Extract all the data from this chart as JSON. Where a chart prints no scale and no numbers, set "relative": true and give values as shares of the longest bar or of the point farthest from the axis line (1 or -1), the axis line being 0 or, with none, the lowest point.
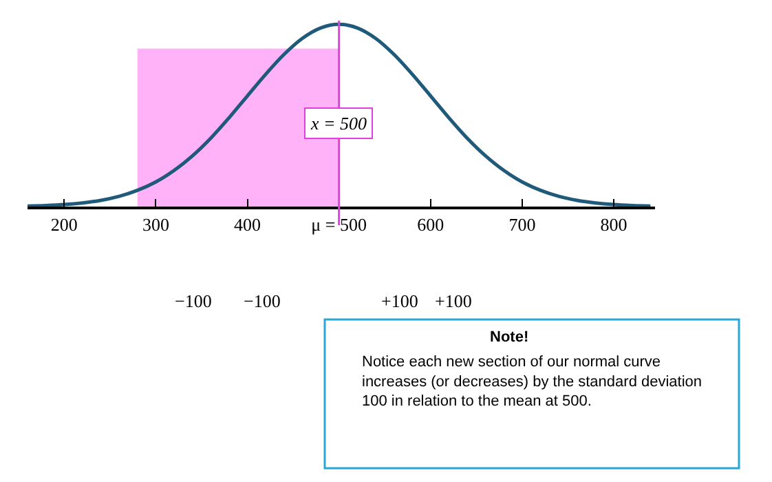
{
  "chart_data": {
    "type": "line",
    "relative": true,
    "x": [
      160,
      180,
      200,
      220,
      240,
      260,
      280,
      300,
      320,
      340,
      360,
      380,
      400,
      420,
      440,
      460,
      480,
      500,
      520,
      540,
      560,
      580,
      600,
      620,
      640,
      660,
      680,
      700,
      720,
      740,
      760,
      780,
      800,
      820,
      840
    ],
    "series": [
      {
        "color": "#1f5a7a",
        "values": [
          0.003,
          0.006,
          0.011,
          0.02,
          0.034,
          0.056,
          0.089,
          0.135,
          0.198,
          0.278,
          0.375,
          0.487,
          0.607,
          0.726,
          0.835,
          0.923,
          0.98,
          1,
          0.98,
          0.923,
          0.835,
          0.726,
          0.607,
          0.487,
          0.375,
          0.278,
          0.198,
          0.135,
          0.089,
          0.056,
          0.034,
          0.02,
          0.011,
          0.006,
          0.003
        ]
      }
    ],
    "xlim": [
      160,
      845
    ],
    "xticks": [
      200,
      300,
      400,
      {
        "value": 500,
        "label": "μ = 500"
      },
      600,
      700,
      800
    ],
    "ref_lines": [
      {
        "axis": "x",
        "value": 500,
        "label": "x = 500",
        "color": "#e040e0"
      }
    ],
    "bands": [
      {
        "axis": "x",
        "from": 280,
        "to": 500,
        "color": "#ff55ee"
      }
    ],
    "marker": "none",
    "line_style": "solid",
    "grid": false,
    "legend": false,
    "annotations": [
      "−100",
      "−100",
      "+100",
      "+100",
      "Note!",
      "Notice each new section of our normal curve increases (or decreases) by the standard deviation 100 in relation to the mean at 500."
    ]
  }
}
